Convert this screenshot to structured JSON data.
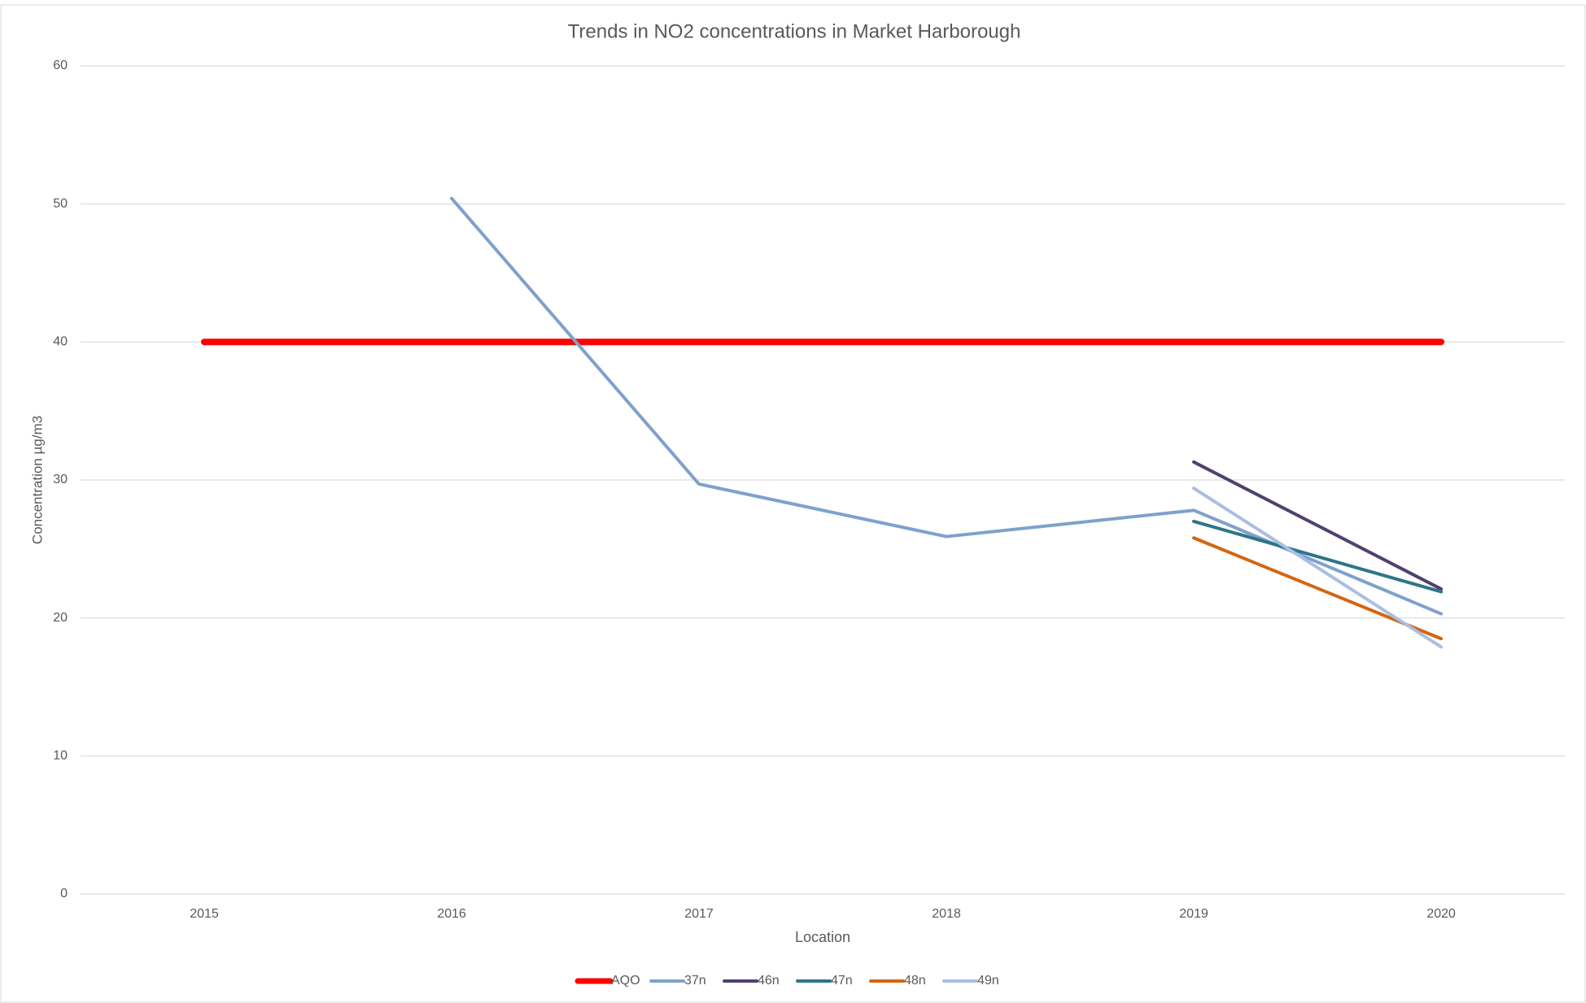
{
  "chart_data": {
    "type": "line",
    "title": "Trends in NO2 concentrations in Market Harborough",
    "x_label": "Location",
    "y_label": "Concentration µg/m3",
    "categories": [
      "2015",
      "2016",
      "2017",
      "2018",
      "2019",
      "2020"
    ],
    "series": [
      {
        "name": "AQO",
        "color": "#ff0000",
        "values": [
          40,
          40,
          40,
          40,
          40,
          40
        ]
      },
      {
        "name": "37n",
        "color": "#7ea1cc",
        "values": [
          null,
          50.4,
          29.7,
          25.9,
          27.8,
          20.3
        ]
      },
      {
        "name": "46n",
        "color": "#50406f",
        "values": [
          null,
          null,
          null,
          null,
          31.3,
          22.1
        ]
      },
      {
        "name": "47n",
        "color": "#2e7589",
        "values": [
          null,
          null,
          null,
          null,
          27.0,
          21.9
        ]
      },
      {
        "name": "48n",
        "color": "#d4650f",
        "values": [
          null,
          null,
          null,
          null,
          25.8,
          18.5
        ]
      },
      {
        "name": "49n",
        "color": "#a9bfe2",
        "values": [
          null,
          null,
          null,
          null,
          29.4,
          17.9
        ]
      }
    ],
    "ylim": [
      0,
      60
    ],
    "yticks": [
      0,
      10,
      20,
      30,
      40,
      50,
      60
    ],
    "grid": true,
    "legend": "bottom"
  }
}
